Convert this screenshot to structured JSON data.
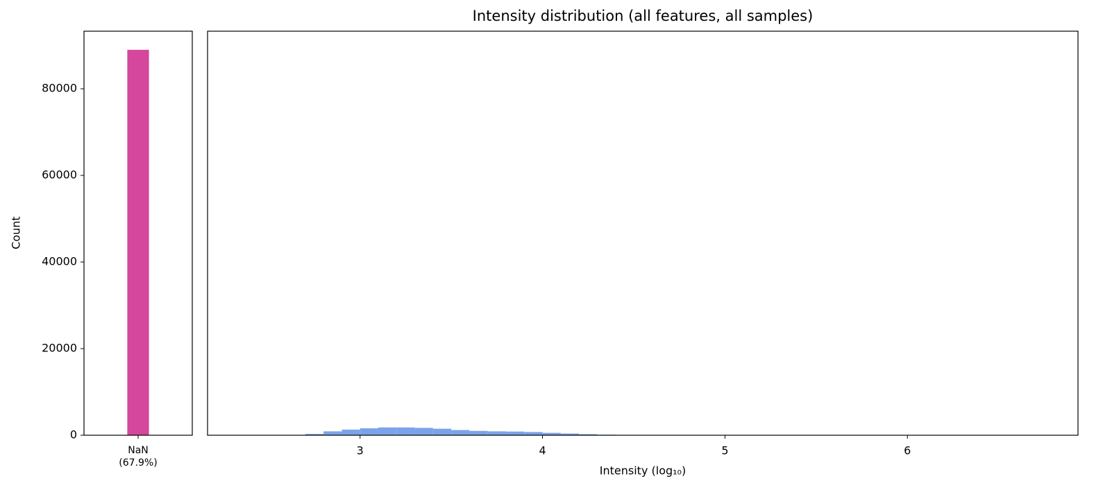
{
  "chart_data": [
    {
      "type": "bar",
      "categories": [
        "NaN\n(67.9%)"
      ],
      "values": [
        89000
      ],
      "color": "#d4479c",
      "ylabel": "Count",
      "ylim": [
        0,
        93300
      ],
      "yticks": [
        0,
        20000,
        40000,
        60000,
        80000
      ]
    },
    {
      "type": "histogram",
      "title": "Intensity distribution (all features, all samples)",
      "xlabel": "Intensity (log₁₀)",
      "color": "#7ba3ea",
      "bins": [
        2.7,
        2.8,
        2.9,
        3.0,
        3.1,
        3.2,
        3.3,
        3.4,
        3.5,
        3.6,
        3.7,
        3.8,
        3.9,
        4.0,
        4.1,
        4.2,
        4.3,
        4.4
      ],
      "values": [
        300,
        900,
        1300,
        1600,
        1800,
        1800,
        1700,
        1500,
        1200,
        1000,
        900,
        850,
        750,
        550,
        400,
        250,
        120
      ],
      "xlim": [
        2.164,
        6.935
      ],
      "xticks": [
        3,
        4,
        5,
        6
      ],
      "ylim": [
        0,
        93300
      ]
    }
  ]
}
